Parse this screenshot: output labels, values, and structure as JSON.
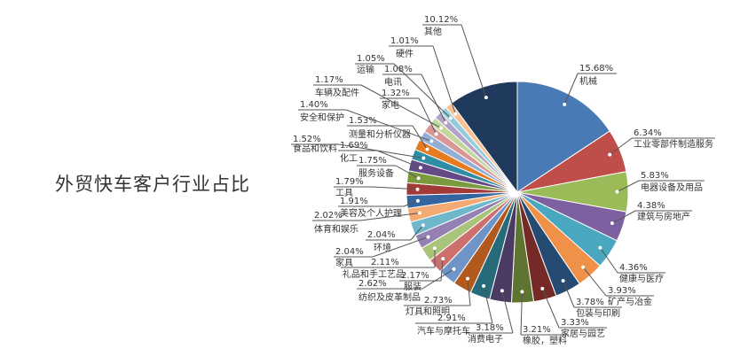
{
  "chart_data": {
    "type": "pie",
    "title": "外贸快车客户行业占比",
    "slices": [
      {
        "label": "机械",
        "value": 15.68,
        "display": "15.68%",
        "color": "#4a7ab5"
      },
      {
        "label": "工业零部件制造服务",
        "value": 6.34,
        "display": "6.34%",
        "color": "#bf4d4a"
      },
      {
        "label": "电器设备及用品",
        "value": 5.83,
        "display": "5.83%",
        "color": "#9abb58"
      },
      {
        "label": "建筑与房地产",
        "value": 4.38,
        "display": "4.38%",
        "color": "#7d60a0"
      },
      {
        "label": "健康与医疗",
        "value": 4.36,
        "display": "4.36%",
        "color": "#4aa7c0"
      },
      {
        "label": "矿产与冶金",
        "value": 3.93,
        "display": "3.93%",
        "color": "#f0914a"
      },
      {
        "label": "包装与印刷",
        "value": 3.78,
        "display": "3.78%",
        "color": "#264b73"
      },
      {
        "label": "家居与园艺",
        "value": 3.33,
        "display": "3.33%",
        "color": "#762a28"
      },
      {
        "label": "橡胶，塑料",
        "value": 3.21,
        "display": "3.21%",
        "color": "#5e7430"
      },
      {
        "label": "消费电子",
        "value": 3.18,
        "display": "3.18%",
        "color": "#4b3a62"
      },
      {
        "label": "汽车与摩托车",
        "value": 2.91,
        "display": "2.91%",
        "color": "#276b7b"
      },
      {
        "label": "灯具和照明",
        "value": 2.73,
        "display": "2.73%",
        "color": "#b25a1e"
      },
      {
        "label": "纺织及皮革制品",
        "value": 2.62,
        "display": "2.62%",
        "color": "#6f95c8"
      },
      {
        "label": "服装",
        "value": 2.17,
        "display": "2.17%",
        "color": "#cd6f6c"
      },
      {
        "label": "礼品和手工艺品",
        "value": 2.11,
        "display": "2.11%",
        "color": "#a9c47a"
      },
      {
        "label": "家具",
        "value": 2.04,
        "display": "2.04%",
        "color": "#9580b4"
      },
      {
        "label": "环境",
        "value": 2.04,
        "display": "2.04%",
        "color": "#6fb8cc"
      },
      {
        "label": "体育和娱乐",
        "value": 2.02,
        "display": "2.02%",
        "color": "#f3ab73"
      },
      {
        "label": "美容及个人护理",
        "value": 1.91,
        "display": "1.91%",
        "color": "#3465a0"
      },
      {
        "label": "工具",
        "value": 1.79,
        "display": "1.79%",
        "color": "#a33a37"
      },
      {
        "label": "服务设备",
        "value": 1.75,
        "display": "1.75%",
        "color": "#7b9a3e"
      },
      {
        "label": "化工",
        "value": 1.69,
        "display": "1.69%",
        "color": "#644a86"
      },
      {
        "label": "食品和饮料",
        "value": 1.52,
        "display": "1.52%",
        "color": "#2f8ea6"
      },
      {
        "label": "测量和分析仪器",
        "value": 1.53,
        "display": "1.53%",
        "color": "#e57b23"
      },
      {
        "label": "安全和保护",
        "value": 1.4,
        "display": "1.40%",
        "color": "#94afd6"
      },
      {
        "label": "家电",
        "value": 1.32,
        "display": "1.32%",
        "color": "#d99694"
      },
      {
        "label": "车辆及配件",
        "value": 1.17,
        "display": "1.17%",
        "color": "#c3d69b"
      },
      {
        "label": "电讯",
        "value": 1.08,
        "display": "1.08%",
        "color": "#b3a2c7"
      },
      {
        "label": "运输",
        "value": 1.05,
        "display": "1.05%",
        "color": "#93cddd"
      },
      {
        "label": "硬件",
        "value": 1.01,
        "display": "1.01%",
        "color": "#fac090"
      },
      {
        "label": "其他",
        "value": 10.12,
        "display": "10.12%",
        "color": "#1f3a5c"
      }
    ],
    "legend": "none",
    "label_style": "outside with leader lines"
  }
}
